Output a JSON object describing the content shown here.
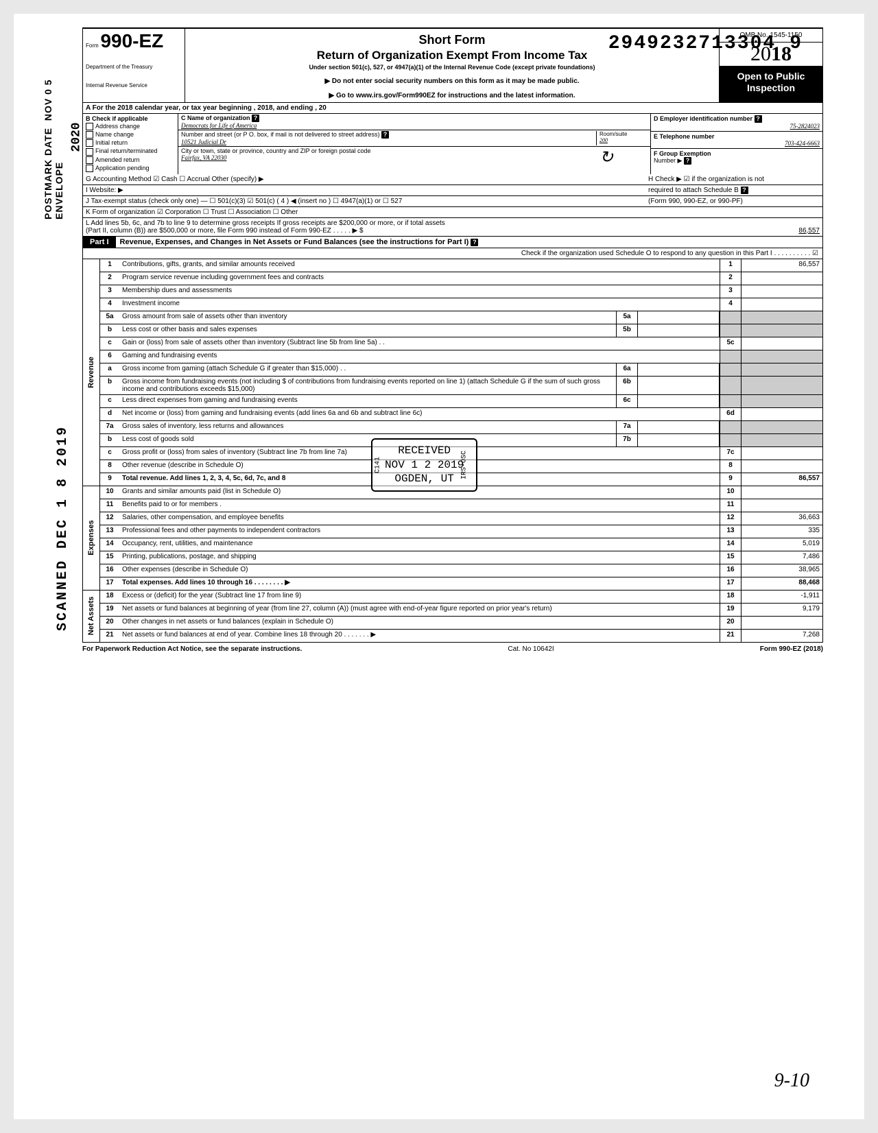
{
  "doc_number": "29492327133049",
  "doc_number_main": "2949232713304",
  "doc_number_trail": "9",
  "side_stamps": {
    "envelope": "ENVELOPE\nPOSTMARK DATE NOV 0 5 2020",
    "scanned": "SCANNED DEC 1 8 2019",
    "year2020": "2020"
  },
  "handwrite_bottom": "9-10",
  "header": {
    "form_prefix": "Form",
    "form_number": "990-EZ",
    "dept1": "Department of the Treasury",
    "dept2": "Internal Revenue Service",
    "short_form": "Short Form",
    "return_title": "Return of Organization Exempt From Income Tax",
    "under_section": "Under section 501(c), 527, or 4947(a)(1) of the Internal Revenue Code (except private foundations)",
    "note1": "Do not enter social security numbers on this form as it may be made public.",
    "note2": "Go to www.irs.gov/Form990EZ for instructions and the latest information.",
    "omb": "OMB No. 1545-1150",
    "year_thin": "20",
    "year_bold": "18",
    "open1": "Open to Public",
    "open2": "Inspection"
  },
  "row_a": "A  For the 2018 calendar year, or tax year beginning                                                                     , 2018, and ending                                               , 20",
  "col_b": {
    "head": "B  Check if applicable",
    "items": [
      "Address change",
      "Name change",
      "Initial return",
      "Final return/terminated",
      "Amended return",
      "Application pending"
    ]
  },
  "col_c": {
    "name_label": "C  Name of organization",
    "name_value": "Democrats for Life of America",
    "addr_label": "Number and street (or P O. box, if mail is not delivered to street address)",
    "addr_value": "10521 Judicial Dr",
    "room_label": "Room/suite",
    "room_value": "200",
    "city_label": "City or town, state or province, country  and ZIP or foreign postal code",
    "city_value": "Fairfax, VA  22030"
  },
  "col_de": {
    "d_label": "D Employer identification number",
    "d_value": "75-2824023",
    "e_label": "E Telephone number",
    "e_value": "703-424-6663",
    "f_label": "F Group Exemption",
    "f_label2": "Number ▶"
  },
  "row_g": {
    "left": "G  Accounting Method       ☑ Cash      ☐ Accrual      Other (specify) ▶",
    "right": "H  Check ▶ ☑ if the organization is not"
  },
  "row_i": {
    "left": "I   Website: ▶",
    "right": "required to attach Schedule B"
  },
  "row_j": {
    "left": "J  Tax-exempt status (check only one) —  ☐ 501(c)(3)    ☑ 501(c) (   4   ) ◀ (insert no ) ☐ 4947(a)(1) or    ☐ 527",
    "right": "(Form 990, 990-EZ, or 990-PF)"
  },
  "row_k": "K  Form of organization      ☑ Corporation        ☐ Trust                  ☐ Association         ☐ Other",
  "row_l": {
    "l1": "L  Add lines 5b, 6c, and 7b to line 9 to determine gross receipts  If gross receipts are $200,000 or more, or if total assets",
    "l2": "(Part II, column (B)) are $500,000 or more, file Form 990 instead of Form 990-EZ .     .        .    .                              .   ▶    $",
    "l_value": "86,557"
  },
  "part1": {
    "tab": "Part I",
    "title": "Revenue, Expenses, and Changes in Net Assets or Fund Balances (see the instructions for Part I) ",
    "subcheck": "Check if the organization used Schedule O to respond to any question in this Part I  .   .   .   .   .   .   .   .   .   .   ☑"
  },
  "revenue_section_label": "Revenue",
  "expenses_section_label": "Expenses",
  "netassets_section_label": "Net Assets",
  "lines": [
    {
      "n": "1",
      "desc": "Contributions, gifts, grants, and similar amounts received",
      "rnum": "1",
      "rval": "86,557",
      "help": true
    },
    {
      "n": "2",
      "desc": "Program service revenue including government fees and contracts",
      "rnum": "2",
      "rval": "",
      "help": true
    },
    {
      "n": "3",
      "desc": "Membership dues and assessments",
      "rnum": "3",
      "rval": "",
      "help": true
    },
    {
      "n": "4",
      "desc": "Investment income",
      "rnum": "4",
      "rval": "",
      "help": true
    },
    {
      "n": "5a",
      "desc": "Gross amount from sale of assets other than inventory",
      "mid": "5a",
      "midval": ""
    },
    {
      "n": "b",
      "desc": "Less  cost or other basis and sales expenses",
      "mid": "5b",
      "midval": ""
    },
    {
      "n": "c",
      "desc": "Gain or (loss) from sale of assets other than inventory (Subtract line 5b from line 5a)  .   .",
      "rnum": "5c",
      "rval": ""
    },
    {
      "n": "6",
      "desc": "Gaming and fundraising events"
    },
    {
      "n": "a",
      "desc": "Gross  income  from  gaming  (attach  Schedule  G  if  greater  than $15,000)  .   .",
      "mid": "6a",
      "midval": ""
    },
    {
      "n": "b",
      "desc": "Gross income from fundraising events (not including  $                    of contributions from fundraising events reported on line 1) (attach Schedule G if the sum of such gross income and contributions exceeds $15,000)",
      "mid": "6b",
      "midval": ""
    },
    {
      "n": "c",
      "desc": "Less  direct expenses from gaming and fundraising events",
      "mid": "6c",
      "midval": ""
    },
    {
      "n": "d",
      "desc": "Net income or (loss) from gaming and fundraising events (add lines 6a and 6b and subtract line 6c)",
      "rnum": "6d",
      "rval": ""
    },
    {
      "n": "7a",
      "desc": "Gross sales of inventory, less returns and allowances",
      "mid": "7a",
      "midval": ""
    },
    {
      "n": "b",
      "desc": "Less  cost of goods sold",
      "mid": "7b",
      "midval": ""
    },
    {
      "n": "c",
      "desc": "Gross profit or (loss) from sales of inventory (Subtract line 7b from line 7a)",
      "rnum": "7c",
      "rval": ""
    },
    {
      "n": "8",
      "desc": "Other revenue (describe in Schedule O)",
      "rnum": "8",
      "rval": ""
    },
    {
      "n": "9",
      "desc": "Total revenue. Add lines 1, 2, 3, 4, 5c, 6d, 7c, and 8",
      "rnum": "9",
      "rval": "86,557",
      "bold": true
    }
  ],
  "exp_lines": [
    {
      "n": "10",
      "desc": "Grants and similar amounts paid (list in Schedule O)",
      "rnum": "10",
      "rval": ""
    },
    {
      "n": "11",
      "desc": "Benefits paid to or for members   .",
      "rnum": "11",
      "rval": ""
    },
    {
      "n": "12",
      "desc": "Salaries, other compensation, and employee benefits ",
      "rnum": "12",
      "rval": "36,663",
      "help": true
    },
    {
      "n": "13",
      "desc": "Professional fees and other payments to independent contractors ",
      "rnum": "13",
      "rval": "335",
      "help": true
    },
    {
      "n": "14",
      "desc": "Occupancy, rent, utilities, and maintenance",
      "rnum": "14",
      "rval": "5,019"
    },
    {
      "n": "15",
      "desc": "Printing, publications, postage, and shipping",
      "rnum": "15",
      "rval": "7,486"
    },
    {
      "n": "16",
      "desc": "Other expenses (describe in Schedule O) ",
      "rnum": "16",
      "rval": "38,965",
      "help": true
    },
    {
      "n": "17",
      "desc": "Total expenses. Add lines 10 through 16   .",
      "rnum": "17",
      "rval": "88,468",
      "bold": true,
      "arrow": true
    }
  ],
  "na_lines": [
    {
      "n": "18",
      "desc": "Excess or (deficit) for the year (Subtract line 17 from line 9)",
      "rnum": "18",
      "rval": "-1,911"
    },
    {
      "n": "19",
      "desc": "Net assets or fund balances at beginning of year (from line 27, column (A)) (must agree with end-of-year figure reported on prior year's return)",
      "rnum": "19",
      "rval": "9,179"
    },
    {
      "n": "20",
      "desc": "Other changes in net assets or fund balances (explain in Schedule O)",
      "rnum": "20",
      "rval": ""
    },
    {
      "n": "21",
      "desc": "Net assets or fund balances at end of year. Combine lines 18 through 20",
      "rnum": "21",
      "rval": "7,268",
      "arrow": true
    }
  ],
  "received_stamp": {
    "line1": "RECEIVED",
    "line2": "NOV 1 2 2019",
    "line3": "OGDEN, UT",
    "side_left": "C141",
    "side_right": "IRS-OSC"
  },
  "footer": {
    "left": "For Paperwork Reduction Act Notice, see the separate instructions.",
    "mid": "Cat. No  10642I",
    "right": "Form 990-EZ (2018)"
  }
}
